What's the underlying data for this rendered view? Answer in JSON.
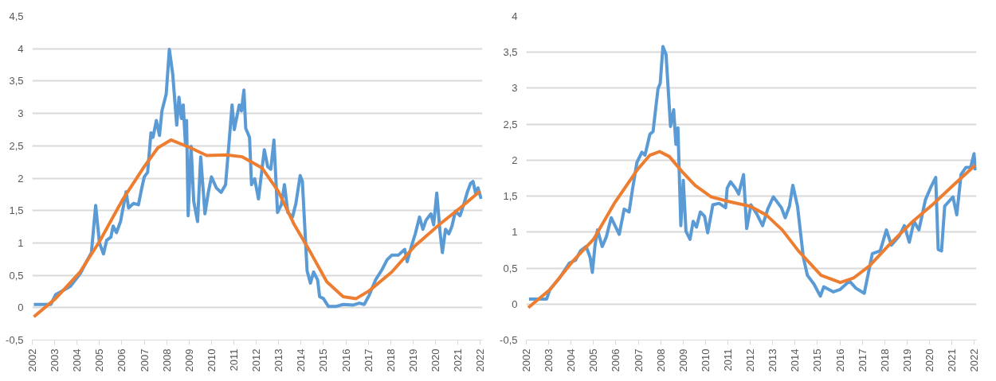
{
  "chart_data": [
    {
      "type": "line",
      "grid": "y",
      "xlim": [
        2002,
        2022.1
      ],
      "ylim": [
        -0.5,
        4.5
      ],
      "xticks": [
        2002,
        2003,
        2004,
        2005,
        2006,
        2007,
        2008,
        2009,
        2010,
        2011,
        2012,
        2013,
        2014,
        2015,
        2016,
        2017,
        2018,
        2019,
        2020,
        2021,
        2022
      ],
      "yticks": [
        {
          "value": -0.5,
          "label": "-0,5"
        },
        0,
        {
          "value": 0.5,
          "label": "0,5"
        },
        1,
        {
          "value": 1.5,
          "label": "1,5"
        },
        2,
        {
          "value": 2.5,
          "label": "2,5"
        },
        3,
        {
          "value": 3.5,
          "label": "3,5"
        },
        4,
        {
          "value": 4.5,
          "label": "4,5"
        }
      ],
      "series": [
        {
          "color": "#5b9bd5",
          "x": [
            2002.07,
            2002.83,
            2003.04,
            2003.7,
            2004.13,
            2004.42,
            2004.64,
            2004.83,
            2005.0,
            2005.18,
            2005.32,
            2005.51,
            2005.61,
            2005.76,
            2005.94,
            2006.19,
            2006.3,
            2006.52,
            2006.74,
            2006.89,
            2007.0,
            2007.15,
            2007.3,
            2007.39,
            2007.54,
            2007.68,
            2007.79,
            2007.98,
            2008.12,
            2008.27,
            2008.45,
            2008.55,
            2008.66,
            2008.74,
            2008.84,
            2008.89,
            2008.96,
            2009.09,
            2009.21,
            2009.38,
            2009.52,
            2009.71,
            2009.86,
            2010.0,
            2010.22,
            2010.43,
            2010.63,
            2010.8,
            2010.92,
            2011.02,
            2011.24,
            2011.34,
            2011.45,
            2011.53,
            2011.7,
            2011.79,
            2011.93,
            2012.1,
            2012.36,
            2012.51,
            2012.65,
            2012.79,
            2012.95,
            2013.12,
            2013.26,
            2013.41,
            2013.62,
            2013.77,
            2013.96,
            2014.06,
            2014.27,
            2014.42,
            2014.56,
            2014.74,
            2014.83,
            2015.0,
            2015.22,
            2015.58,
            2015.88,
            2016.31,
            2016.6,
            2016.82,
            2017.04,
            2017.33,
            2017.62,
            2017.84,
            2018.05,
            2018.34,
            2018.63,
            2018.74,
            2018.93,
            2019.1,
            2019.29,
            2019.44,
            2019.58,
            2019.8,
            2019.92,
            2020.06,
            2020.2,
            2020.31,
            2020.45,
            2020.6,
            2020.74,
            2020.89,
            2021.1,
            2021.28,
            2021.42,
            2021.57,
            2021.68,
            2021.8,
            2021.9,
            2022.04
          ],
          "values": [
            0.05,
            0.05,
            0.2,
            0.33,
            0.52,
            0.71,
            0.85,
            1.58,
            1.0,
            0.83,
            1.04,
            1.09,
            1.26,
            1.16,
            1.33,
            1.79,
            1.54,
            1.61,
            1.59,
            1.85,
            2.02,
            2.09,
            2.7,
            2.63,
            2.89,
            2.66,
            3.04,
            3.3,
            3.99,
            3.61,
            2.82,
            3.25,
            2.92,
            3.13,
            2.51,
            2.89,
            1.42,
            2.49,
            1.64,
            1.33,
            2.33,
            1.45,
            1.78,
            2.02,
            1.85,
            1.78,
            1.9,
            2.61,
            3.13,
            2.75,
            3.13,
            3.04,
            3.36,
            2.77,
            2.63,
            1.9,
            1.99,
            1.68,
            2.44,
            2.18,
            2.14,
            2.59,
            1.47,
            1.59,
            1.9,
            1.47,
            1.4,
            1.61,
            2.04,
            1.95,
            0.57,
            0.38,
            0.55,
            0.43,
            0.17,
            0.14,
            0.02,
            0.02,
            0.05,
            0.04,
            0.07,
            0.05,
            0.19,
            0.43,
            0.59,
            0.74,
            0.81,
            0.81,
            0.9,
            0.71,
            0.95,
            1.14,
            1.4,
            1.21,
            1.35,
            1.45,
            1.28,
            1.77,
            1.19,
            0.85,
            1.21,
            1.14,
            1.26,
            1.49,
            1.42,
            1.61,
            1.78,
            1.92,
            1.95,
            1.76,
            1.85,
            1.68
          ]
        },
        {
          "color": "#ed7d31",
          "x": [
            2002.07,
            2003.04,
            2004.13,
            2005.0,
            2006.02,
            2007.0,
            2007.61,
            2008.19,
            2009.06,
            2009.79,
            2010.66,
            2011.38,
            2012.25,
            2012.98,
            2013.7,
            2014.43,
            2015.15,
            2015.88,
            2016.46,
            2017.04,
            2018.05,
            2019.07,
            2020.23,
            2021.1,
            2022.0
          ],
          "values": [
            -0.14,
            0.14,
            0.55,
            1.02,
            1.66,
            2.18,
            2.47,
            2.59,
            2.47,
            2.35,
            2.36,
            2.33,
            2.16,
            1.8,
            1.28,
            0.85,
            0.4,
            0.17,
            0.14,
            0.26,
            0.55,
            0.95,
            1.3,
            1.54,
            1.8
          ]
        }
      ]
    },
    {
      "type": "line",
      "grid": "y",
      "xlim": [
        2002,
        2022.1
      ],
      "ylim": [
        -0.5,
        4
      ],
      "xticks": [
        2002,
        2003,
        2004,
        2005,
        2006,
        2007,
        2008,
        2009,
        2010,
        2011,
        2012,
        2013,
        2014,
        2015,
        2016,
        2017,
        2018,
        2019,
        2020,
        2021,
        2022
      ],
      "yticks": [
        {
          "value": -0.5,
          "label": "-0,5"
        },
        0,
        {
          "value": 0.5,
          "label": "0,5"
        },
        1,
        {
          "value": 1.5,
          "label": "1,5"
        },
        2,
        {
          "value": 2.5,
          "label": "2,5"
        },
        3,
        {
          "value": 3.5,
          "label": "3,5"
        },
        4
      ],
      "series": [
        {
          "color": "#5b9bd5",
          "x": [
            2002.12,
            2002.91,
            2003.05,
            2003.48,
            2003.92,
            2004.2,
            2004.42,
            2004.67,
            2004.85,
            2004.95,
            2005.07,
            2005.18,
            2005.39,
            2005.57,
            2005.79,
            2006.15,
            2006.37,
            2006.59,
            2006.73,
            2006.94,
            2007.16,
            2007.3,
            2007.52,
            2007.66,
            2007.88,
            2007.98,
            2008.1,
            2008.24,
            2008.44,
            2008.58,
            2008.68,
            2008.77,
            2008.9,
            2009.01,
            2009.13,
            2009.31,
            2009.45,
            2009.6,
            2009.77,
            2009.96,
            2010.1,
            2010.33,
            2010.61,
            2010.9,
            2010.97,
            2011.12,
            2011.34,
            2011.48,
            2011.7,
            2011.84,
            2012.03,
            2012.28,
            2012.55,
            2012.78,
            2013.03,
            2013.39,
            2013.56,
            2013.75,
            2013.9,
            2014.11,
            2014.37,
            2014.55,
            2014.84,
            2015.13,
            2015.28,
            2015.71,
            2016.0,
            2016.43,
            2016.72,
            2017.09,
            2017.45,
            2017.8,
            2018.08,
            2018.3,
            2018.66,
            2018.88,
            2019.1,
            2019.31,
            2019.53,
            2019.82,
            2020.1,
            2020.28,
            2020.39,
            2020.54,
            2020.68,
            2021.05,
            2021.22,
            2021.41,
            2021.63,
            2021.84,
            2021.99,
            2022.05
          ],
          "values": [
            0.07,
            0.07,
            0.2,
            0.36,
            0.57,
            0.61,
            0.74,
            0.8,
            0.65,
            0.44,
            0.82,
            1.03,
            0.8,
            0.93,
            1.2,
            0.97,
            1.32,
            1.28,
            1.57,
            1.97,
            2.11,
            2.07,
            2.36,
            2.4,
            2.99,
            3.07,
            3.58,
            3.47,
            2.47,
            2.7,
            2.22,
            2.45,
            1.09,
            1.72,
            1.01,
            0.9,
            1.15,
            1.07,
            1.28,
            1.22,
            0.99,
            1.38,
            1.4,
            1.34,
            1.61,
            1.7,
            1.61,
            1.53,
            1.8,
            1.05,
            1.38,
            1.26,
            1.09,
            1.32,
            1.49,
            1.34,
            1.2,
            1.36,
            1.65,
            1.36,
            0.65,
            0.4,
            0.28,
            0.11,
            0.24,
            0.17,
            0.2,
            0.32,
            0.22,
            0.15,
            0.7,
            0.74,
            1.03,
            0.82,
            0.95,
            1.09,
            0.86,
            1.15,
            1.03,
            1.45,
            1.65,
            1.76,
            0.76,
            0.74,
            1.36,
            1.49,
            1.24,
            1.8,
            1.9,
            1.9,
            2.09,
            1.86
          ]
        },
        {
          "color": "#ed7d31",
          "x": [
            2002.09,
            2003.05,
            2004.06,
            2005.0,
            2005.93,
            2006.94,
            2007.52,
            2007.95,
            2008.39,
            2008.96,
            2009.54,
            2010.26,
            2010.98,
            2011.99,
            2012.71,
            2013.43,
            2014.15,
            2015.16,
            2016.02,
            2016.6,
            2017.32,
            2018.19,
            2019.19,
            2020.2,
            2021.06,
            2022.04
          ],
          "values": [
            -0.05,
            0.2,
            0.59,
            0.9,
            1.4,
            1.86,
            2.07,
            2.12,
            2.05,
            1.84,
            1.65,
            1.49,
            1.43,
            1.36,
            1.24,
            1.03,
            0.74,
            0.4,
            0.3,
            0.36,
            0.53,
            0.82,
            1.13,
            1.4,
            1.65,
            1.93
          ]
        }
      ]
    }
  ]
}
